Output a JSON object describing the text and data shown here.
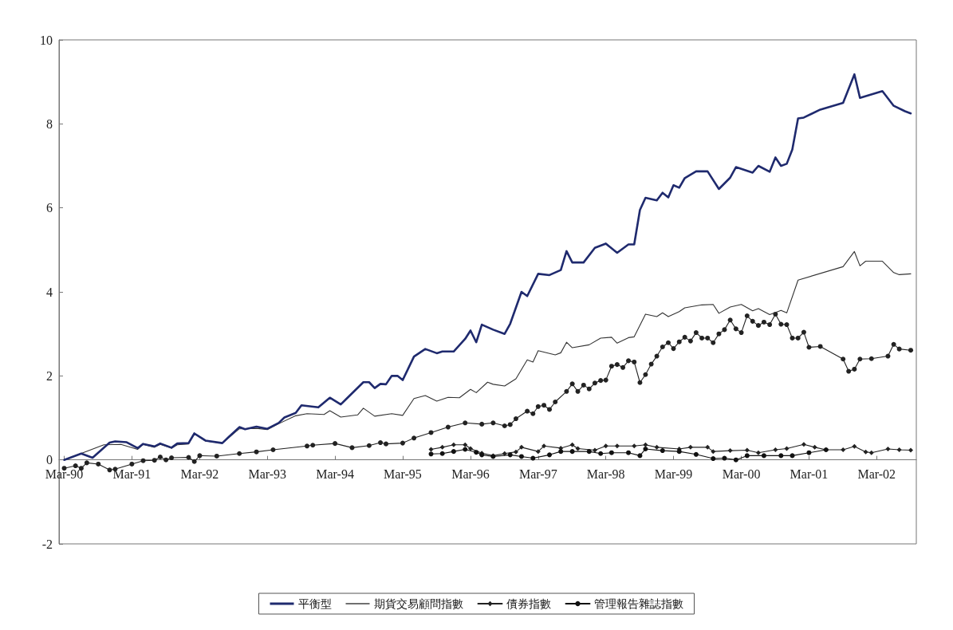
{
  "chart_data": {
    "type": "line",
    "xlim": [
      "1990-02",
      "2002-10"
    ],
    "xticks": [
      {
        "value": "1990-03",
        "label": "Mar-90"
      },
      {
        "value": "1991-03",
        "label": "Mar-91"
      },
      {
        "value": "1992-03",
        "label": "Mar-92"
      },
      {
        "value": "1993-03",
        "label": "Mar-93"
      },
      {
        "value": "1994-03",
        "label": "Mar-94"
      },
      {
        "value": "1995-03",
        "label": "Mar-95"
      },
      {
        "value": "1996-03",
        "label": "Mar-96"
      },
      {
        "value": "1997-03",
        "label": "Mar-97"
      },
      {
        "value": "1998-03",
        "label": "Mar-98"
      },
      {
        "value": "1999-03",
        "label": "Mar-99"
      },
      {
        "value": "2000-03",
        "label": "Mar-00"
      },
      {
        "value": "2001-03",
        "label": "Mar-01"
      },
      {
        "value": "2002-03",
        "label": "Mar-02"
      }
    ],
    "ylim": [
      -2,
      10
    ],
    "yticks": [
      -2,
      0,
      2,
      4,
      6,
      8,
      10
    ],
    "grid": false,
    "legend": "bottom",
    "line_style": "solid",
    "series": [
      {
        "name": "平衡型",
        "color": "#1f2a6e",
        "marker": "none",
        "x": [
          "1990-03",
          "1990-06",
          "1990-08",
          "1990-11",
          "1990-12",
          "1991-02",
          "1991-04",
          "1991-05",
          "1991-07",
          "1991-08",
          "1991-10",
          "1991-11",
          "1992-01",
          "1992-02",
          "1992-04",
          "1992-07",
          "1992-08",
          "1992-10",
          "1992-11",
          "1993-01",
          "1993-03",
          "1993-05",
          "1993-06",
          "1993-08",
          "1993-09",
          "1993-12",
          "1994-02",
          "1994-04",
          "1994-05",
          "1994-08",
          "1994-09",
          "1994-10",
          "1994-11",
          "1994-12",
          "1995-01",
          "1995-02",
          "1995-03",
          "1995-05",
          "1995-07",
          "1995-09",
          "1995-10",
          "1995-12",
          "1996-02",
          "1996-03",
          "1996-04",
          "1996-05",
          "1996-07",
          "1996-09",
          "1996-10",
          "1996-12",
          "1997-01",
          "1997-03",
          "1997-05",
          "1997-07",
          "1997-08",
          "1997-09",
          "1997-11",
          "1998-01",
          "1998-03",
          "1998-05",
          "1998-07",
          "1998-08",
          "1998-09",
          "1998-10",
          "1998-12",
          "1999-01",
          "1999-02",
          "1999-03",
          "1999-04",
          "1999-05",
          "1999-07",
          "1999-09",
          "1999-11",
          "2000-01",
          "2000-02",
          "2000-05",
          "2000-06",
          "2000-08",
          "2000-09",
          "2000-10",
          "2000-11",
          "2000-12",
          "2001-01",
          "2001-02",
          "2001-05",
          "2001-09",
          "2001-11",
          "2001-12",
          "2002-04",
          "2002-06",
          "2002-08",
          "2002-09"
        ],
        "values": [
          0,
          0.15,
          0.05,
          0.41,
          0.44,
          0.42,
          0.28,
          0.38,
          0.32,
          0.39,
          0.29,
          0.39,
          0.4,
          0.63,
          0.46,
          0.4,
          0.53,
          0.78,
          0.73,
          0.79,
          0.74,
          0.88,
          1.01,
          1.12,
          1.3,
          1.25,
          1.48,
          1.32,
          1.45,
          1.85,
          1.85,
          1.71,
          1.81,
          1.8,
          2.0,
          2.0,
          1.9,
          2.46,
          2.64,
          2.54,
          2.58,
          2.58,
          2.88,
          3.08,
          2.8,
          3.22,
          3.1,
          3.0,
          3.24,
          4.0,
          3.9,
          4.43,
          4.4,
          4.52,
          4.97,
          4.7,
          4.7,
          5.05,
          5.15,
          4.93,
          5.13,
          5.13,
          5.95,
          6.24,
          6.18,
          6.36,
          6.25,
          6.54,
          6.48,
          6.71,
          6.87,
          6.87,
          6.45,
          6.72,
          6.97,
          6.84,
          7.0,
          6.86,
          7.2,
          7.0,
          7.05,
          7.39,
          8.13,
          8.15,
          8.34,
          8.5,
          9.18,
          8.62,
          8.78,
          8.43,
          8.3,
          8.25
        ]
      },
      {
        "color": "#222222",
        "marker": "circle",
        "x": [
          "1990-03",
          "1990-05",
          "1990-06",
          "1990-07",
          "1990-09",
          "1990-11",
          "1990-12",
          "1991-03",
          "1991-05",
          "1991-07",
          "1991-08",
          "1991-09",
          "1991-10",
          "1992-01",
          "1992-02",
          "1992-03",
          "1992-06",
          "1992-10",
          "1993-01",
          "1993-04",
          "1993-10",
          "1993-11",
          "1994-03",
          "1994-06",
          "1994-09",
          "1994-11",
          "1994-12",
          "1995-03",
          "1995-05",
          "1995-08",
          "1995-11",
          "1996-02",
          "1996-05",
          "1996-07",
          "1996-09",
          "1996-10",
          "1996-11",
          "1997-01",
          "1997-02",
          "1997-03",
          "1997-04",
          "1997-05",
          "1997-06",
          "1997-08",
          "1997-09",
          "1997-10",
          "1997-11",
          "1997-12",
          "1998-01",
          "1998-02",
          "1998-03",
          "1998-04",
          "1998-05",
          "1998-06",
          "1998-07",
          "1998-08",
          "1998-09",
          "1998-10",
          "1998-11",
          "1998-12",
          "1999-01",
          "1999-02",
          "1999-03",
          "1999-04",
          "1999-05",
          "1999-06",
          "1999-07",
          "1999-08",
          "1999-09",
          "1999-10",
          "1999-11",
          "1999-12",
          "2000-01",
          "2000-02",
          "2000-03",
          "2000-04",
          "2000-05",
          "2000-06",
          "2000-07",
          "2000-08",
          "2000-09",
          "2000-10",
          "2000-11",
          "2000-12",
          "2001-01",
          "2001-02",
          "2001-03",
          "2001-05",
          "2001-09",
          "2001-10",
          "2001-11",
          "2001-12",
          "2002-02",
          "2002-05",
          "2002-06",
          "2002-07",
          "2002-09"
        ],
        "values": [
          -0.2,
          -0.14,
          -0.2,
          -0.07,
          -0.1,
          -0.24,
          -0.22,
          -0.1,
          -0.02,
          -0.01,
          0.07,
          0.0,
          0.05,
          0.06,
          -0.04,
          0.1,
          0.09,
          0.15,
          0.19,
          0.24,
          0.33,
          0.35,
          0.39,
          0.29,
          0.34,
          0.41,
          0.38,
          0.4,
          0.52,
          0.65,
          0.78,
          0.88,
          0.85,
          0.88,
          0.81,
          0.84,
          0.98,
          1.16,
          1.1,
          1.27,
          1.3,
          1.2,
          1.38,
          1.63,
          1.81,
          1.63,
          1.78,
          1.69,
          1.83,
          1.89,
          1.9,
          2.23,
          2.27,
          2.2,
          2.36,
          2.33,
          1.84,
          2.03,
          2.28,
          2.47,
          2.69,
          2.79,
          2.65,
          2.81,
          2.92,
          2.83,
          3.03,
          2.9,
          2.9,
          2.79,
          3.0,
          3.1,
          3.33,
          3.12,
          3.03,
          3.43,
          3.3,
          3.2,
          3.28,
          3.22,
          3.47,
          3.23,
          3.22,
          2.9,
          2.9,
          3.04,
          2.68,
          2.7,
          2.4,
          2.11,
          2.16,
          2.4,
          2.41,
          2.47,
          2.75,
          2.64,
          2.61
        ]
      },
      {
        "name": "期貨交易顧問指數",
        "color": "#333333",
        "marker": "none",
        "x": [
          "1990-03",
          "1990-10",
          "1991-01",
          "1991-04",
          "1991-05",
          "1991-07",
          "1991-08",
          "1991-10",
          "1991-11",
          "1992-01",
          "1992-02",
          "1992-04",
          "1992-07",
          "1992-10",
          "1993-01",
          "1993-03",
          "1993-05",
          "1993-08",
          "1993-10",
          "1994-01",
          "1994-02",
          "1994-04",
          "1994-07",
          "1994-08",
          "1994-10",
          "1995-01",
          "1995-03",
          "1995-05",
          "1995-07",
          "1995-09",
          "1995-11",
          "1996-01",
          "1996-03",
          "1996-04",
          "1996-06",
          "1996-07",
          "1996-09",
          "1996-11",
          "1997-01",
          "1997-02",
          "1997-03",
          "1997-06",
          "1997-07",
          "1997-08",
          "1997-09",
          "1997-12",
          "1998-02",
          "1998-04",
          "1998-05",
          "1998-07",
          "1998-08",
          "1998-10",
          "1998-12",
          "1999-01",
          "1999-02",
          "1999-04",
          "1999-05",
          "1999-08",
          "1999-10",
          "1999-11",
          "2000-01",
          "2000-03",
          "2000-05",
          "2000-06",
          "2000-08",
          "2000-10",
          "2000-11",
          "2001-01",
          "2001-09",
          "2001-11",
          "2001-12",
          "2002-01",
          "2002-04",
          "2002-06",
          "2002-07",
          "2002-09"
        ],
        "values": [
          0,
          0.36,
          0.37,
          0.25,
          0.37,
          0.3,
          0.37,
          0.28,
          0.36,
          0.38,
          0.62,
          0.45,
          0.4,
          0.74,
          0.75,
          0.72,
          0.86,
          1.05,
          1.1,
          1.08,
          1.17,
          1.02,
          1.07,
          1.23,
          1.04,
          1.1,
          1.06,
          1.46,
          1.53,
          1.4,
          1.49,
          1.48,
          1.68,
          1.6,
          1.85,
          1.8,
          1.76,
          1.93,
          2.38,
          2.33,
          2.6,
          2.5,
          2.55,
          2.8,
          2.67,
          2.74,
          2.9,
          2.92,
          2.78,
          2.91,
          2.93,
          3.47,
          3.41,
          3.5,
          3.41,
          3.53,
          3.62,
          3.69,
          3.7,
          3.49,
          3.64,
          3.7,
          3.55,
          3.6,
          3.46,
          3.56,
          3.5,
          4.28,
          4.6,
          4.96,
          4.62,
          4.73,
          4.73,
          4.46,
          4.41,
          4.43
        ]
      },
      {
        "name": "債券指數",
        "color": "#222222",
        "marker": "diamond",
        "x": [
          "1995-08",
          "1995-10",
          "1995-12",
          "1996-02",
          "1996-03",
          "1996-05",
          "1996-07",
          "1996-09",
          "1996-11",
          "1996-12",
          "1997-03",
          "1997-04",
          "1997-07",
          "1997-09",
          "1997-10",
          "1998-01",
          "1998-03",
          "1998-05",
          "1998-08",
          "1998-10",
          "1998-12",
          "1999-04",
          "1999-06",
          "1999-09",
          "1999-10",
          "2000-01",
          "2000-04",
          "2000-06",
          "2000-09",
          "2000-11",
          "2001-02",
          "2001-04",
          "2001-06",
          "2001-09",
          "2001-11",
          "2002-01",
          "2002-02",
          "2002-05",
          "2002-07",
          "2002-09"
        ],
        "values": [
          0.25,
          0.3,
          0.36,
          0.36,
          0.27,
          0.16,
          0.1,
          0.15,
          0.19,
          0.3,
          0.2,
          0.33,
          0.28,
          0.36,
          0.27,
          0.23,
          0.33,
          0.33,
          0.33,
          0.36,
          0.3,
          0.26,
          0.3,
          0.3,
          0.2,
          0.22,
          0.23,
          0.17,
          0.24,
          0.27,
          0.37,
          0.3,
          0.24,
          0.24,
          0.32,
          0.19,
          0.17,
          0.26,
          0.24,
          0.23
        ]
      },
      {
        "name": "管理報告雜誌指數",
        "color": "#111111",
        "marker": "circle",
        "x": [
          "1995-08",
          "1995-10",
          "1995-12",
          "1996-02",
          "1996-04",
          "1996-05",
          "1996-07",
          "1996-10",
          "1996-12",
          "1997-02",
          "1997-05",
          "1997-07",
          "1997-09",
          "1997-12",
          "1998-02",
          "1998-04",
          "1998-07",
          "1998-09",
          "1998-10",
          "1999-01",
          "1999-04",
          "1999-07",
          "1999-10",
          "1999-12",
          "2000-02",
          "2000-04",
          "2000-07",
          "2000-10",
          "2000-12",
          "2001-03",
          "2001-06"
        ],
        "values": [
          0.14,
          0.15,
          0.2,
          0.25,
          0.18,
          0.12,
          0.08,
          0.12,
          0.08,
          0.04,
          0.12,
          0.2,
          0.2,
          0.2,
          0.15,
          0.17,
          0.17,
          0.1,
          0.26,
          0.22,
          0.2,
          0.13,
          0.03,
          0.04,
          0.0,
          0.1,
          0.1,
          0.1,
          0.1,
          0.17,
          0.24
        ]
      }
    ]
  }
}
